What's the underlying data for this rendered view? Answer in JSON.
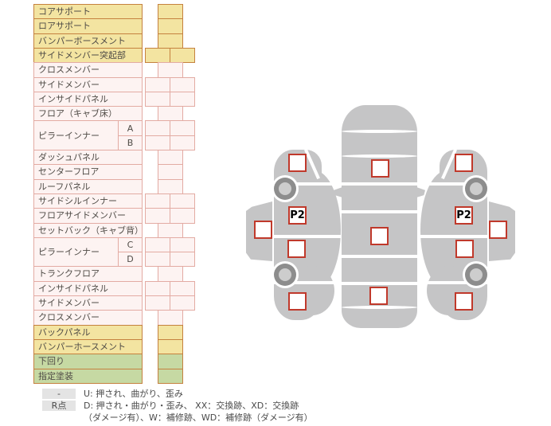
{
  "table": {
    "rows": [
      {
        "label": "コアサポート",
        "color": "yellow",
        "cells": 1
      },
      {
        "label": "ロアサポート",
        "color": "yellow",
        "cells": 1
      },
      {
        "label": "バンパーボースメント",
        "color": "yellow",
        "cells": 1
      },
      {
        "label": "サイドメンバー突起部",
        "color": "yellow",
        "cells": 2
      },
      {
        "label": "クロスメンバー",
        "color": "pink",
        "cells": 1
      },
      {
        "label": "サイドメンバー",
        "color": "pink",
        "cells": 2
      },
      {
        "label": "インサイドパネル",
        "color": "pink",
        "cells": 2
      },
      {
        "label": "フロア（キャブ床）",
        "color": "pink",
        "cells": 1
      },
      {
        "label": "ピラーインナー",
        "color": "pink",
        "cells": 2,
        "sub": "A",
        "group": "start"
      },
      {
        "label": "",
        "color": "pink",
        "cells": 2,
        "sub": "B",
        "group": "end"
      },
      {
        "label": "ダッシュパネル",
        "color": "pink",
        "cells": 1
      },
      {
        "label": "センターフロア",
        "color": "pink",
        "cells": 1
      },
      {
        "label": "ルーフパネル",
        "color": "pink",
        "cells": 1
      },
      {
        "label": "サイドシルインナー",
        "color": "pink",
        "cells": 2
      },
      {
        "label": "フロアサイドメンバー",
        "color": "pink",
        "cells": 2
      },
      {
        "label": "セットバック（キャブ背）",
        "color": "pink",
        "cells": 1
      },
      {
        "label": "ピラーインナー",
        "color": "pink",
        "cells": 2,
        "sub": "C",
        "group": "start"
      },
      {
        "label": "",
        "color": "pink",
        "cells": 2,
        "sub": "D",
        "group": "end"
      },
      {
        "label": "トランクフロア",
        "color": "pink",
        "cells": 1
      },
      {
        "label": "インサイドパネル",
        "color": "pink",
        "cells": 2
      },
      {
        "label": "サイドメンバー",
        "color": "pink",
        "cells": 2
      },
      {
        "label": "クロスメンバー",
        "color": "pink",
        "cells": 1
      },
      {
        "label": "バックパネル",
        "color": "yellow",
        "cells": 1
      },
      {
        "label": "バンパーホースメント",
        "color": "yellow",
        "cells": 1
      },
      {
        "label": "下回り",
        "color": "green",
        "cells": 1
      },
      {
        "label": "指定塗装",
        "color": "green",
        "cells": 1
      }
    ]
  },
  "legend": {
    "rows": [
      {
        "swatch": "-",
        "text": "U: 押され、曲がり、歪み"
      },
      {
        "swatch": "R点",
        "text": "D: 押され・曲がり・歪み、 XX：交換跡、XD：交換跡"
      },
      {
        "swatch": "",
        "text": "（ダメージ有）、W：補修跡、WD：補修跡（ダメージ有）"
      }
    ]
  },
  "diagram": {
    "p2_label": "P2",
    "body_color": "#c5c5c6",
    "marker_border_color": "#c0392b"
  },
  "colors": {
    "yellow_fill": "#f3e4a1",
    "pink_fill": "#fdf3f2",
    "green_fill": "#c6d9a3",
    "yellow_border": "#c5813f",
    "pink_border": "#e3aba3"
  }
}
